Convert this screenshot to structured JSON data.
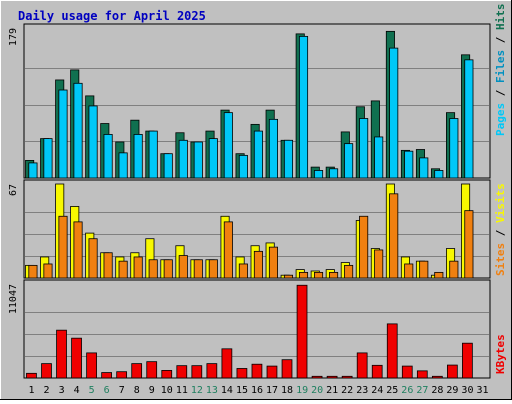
{
  "title": "Daily usage for April 2025",
  "colors": {
    "background": "#c0c0c0",
    "title": "#0000c0",
    "hits_back": "#107050",
    "files": "#00c8f8",
    "pages": "#0090c0",
    "visits_back": "#f8f800",
    "sites": "#f08010",
    "kbytes": "#f00000",
    "weekend_label": "#208060"
  },
  "chart_data": [
    {
      "type": "bar",
      "title": "Daily usage for April 2025",
      "legend": [
        "Pages",
        "Files",
        "Hits"
      ],
      "legend_placement": "right",
      "categories": [
        "1",
        "2",
        "3",
        "4",
        "5",
        "6",
        "7",
        "8",
        "9",
        "10",
        "11",
        "12",
        "13",
        "14",
        "15",
        "16",
        "17",
        "18",
        "19",
        "20",
        "21",
        "22",
        "23",
        "24",
        "25",
        "26",
        "27",
        "28",
        "29",
        "30",
        "31"
      ],
      "weekend_days": [
        "5",
        "6",
        "12",
        "13",
        "19",
        "20",
        "26",
        "27"
      ],
      "ymax_label": "179",
      "ylim": [
        0,
        179
      ],
      "grid": true,
      "series": [
        {
          "name": "Hits",
          "values": [
            21,
            47,
            117,
            129,
            98,
            65,
            43,
            69,
            56,
            29,
            54,
            43,
            56,
            81,
            29,
            64,
            81,
            45,
            172,
            13,
            13,
            55,
            85,
            92,
            175,
            33,
            34,
            11,
            78,
            147,
            0
          ]
        },
        {
          "name": "Files",
          "values": [
            18,
            47,
            105,
            113,
            86,
            52,
            30,
            52,
            56,
            29,
            45,
            43,
            47,
            78,
            27,
            56,
            70,
            45,
            169,
            9,
            11,
            41,
            71,
            49,
            155,
            32,
            24,
            9,
            71,
            141,
            0
          ]
        }
      ]
    },
    {
      "type": "bar",
      "legend": [
        "Sites",
        "Visits"
      ],
      "legend_placement": "right",
      "categories": [
        "1",
        "2",
        "3",
        "4",
        "5",
        "6",
        "7",
        "8",
        "9",
        "10",
        "11",
        "12",
        "13",
        "14",
        "15",
        "16",
        "17",
        "18",
        "19",
        "20",
        "21",
        "22",
        "23",
        "24",
        "25",
        "26",
        "27",
        "28",
        "29",
        "30",
        "31"
      ],
      "ymax_label": "67",
      "ylim": [
        0,
        67
      ],
      "grid": true,
      "series": [
        {
          "name": "Visits",
          "values": [
            9,
            15,
            67,
            51,
            32,
            18,
            15,
            18,
            28,
            13,
            23,
            13,
            13,
            44,
            15,
            23,
            25,
            2,
            6,
            5,
            6,
            11,
            41,
            21,
            67,
            15,
            12,
            2,
            21,
            67,
            0
          ]
        },
        {
          "name": "Sites",
          "values": [
            9,
            10,
            44,
            40,
            28,
            18,
            12,
            15,
            13,
            13,
            16,
            13,
            13,
            40,
            10,
            19,
            22,
            2,
            4,
            4,
            4,
            9,
            44,
            20,
            60,
            10,
            12,
            4,
            12,
            48,
            0
          ]
        }
      ]
    },
    {
      "type": "bar",
      "legend": [
        "KBytes"
      ],
      "legend_placement": "right",
      "categories": [
        "1",
        "2",
        "3",
        "4",
        "5",
        "6",
        "7",
        "8",
        "9",
        "10",
        "11",
        "12",
        "13",
        "14",
        "15",
        "16",
        "17",
        "18",
        "19",
        "20",
        "21",
        "22",
        "23",
        "24",
        "25",
        "26",
        "27",
        "28",
        "29",
        "30",
        "31"
      ],
      "ymax_label": "11047",
      "ylim": [
        0,
        11047
      ],
      "grid": true,
      "series": [
        {
          "name": "KBytes",
          "values": [
            550,
            1690,
            5620,
            4680,
            2950,
            640,
            740,
            1690,
            1920,
            890,
            1450,
            1450,
            1690,
            3430,
            1120,
            1620,
            1400,
            2150,
            10900,
            150,
            150,
            150,
            2950,
            1490,
            6360,
            1400,
            840,
            150,
            1520,
            4090,
            0
          ]
        }
      ]
    }
  ]
}
